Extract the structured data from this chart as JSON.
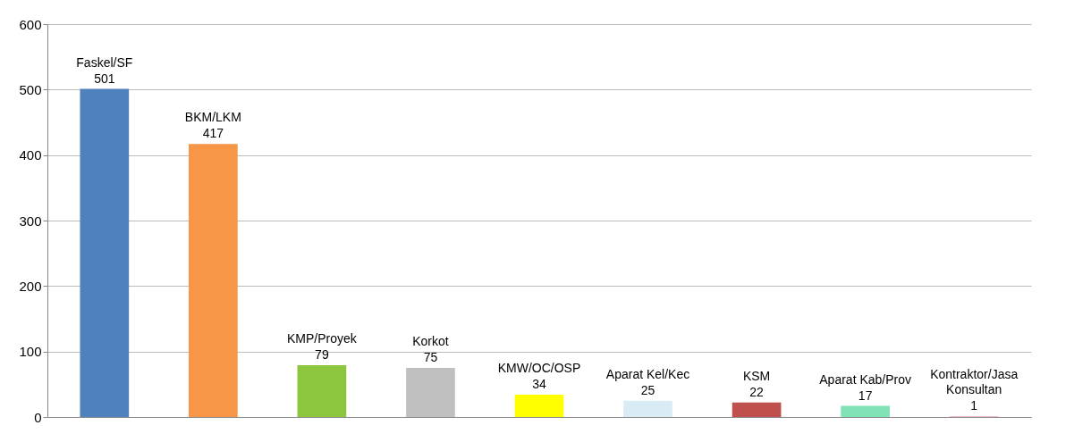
{
  "chart_data": {
    "type": "bar",
    "categories": [
      "Faskel/SF",
      "BKM/LKM",
      "KMP/Proyek",
      "Korkot",
      "KMW/OC/OSP",
      "Aparat Kel/Kec",
      "KSM",
      "Aparat Kab/Prov",
      "Kontraktor/Jasa Konsultan"
    ],
    "values": [
      501,
      417,
      79,
      75,
      34,
      25,
      22,
      17,
      1
    ],
    "colors": [
      "#4f81bd",
      "#f79646",
      "#8cc63f",
      "#c0c0c0",
      "#ffff00",
      "#d9ecf5",
      "#c0504d",
      "#7fe3b5",
      "#f2a7b0"
    ],
    "data_labels": true,
    "ylim": [
      0,
      600
    ],
    "yticks": [
      0,
      100,
      200,
      300,
      400,
      500,
      600
    ],
    "grid": "y",
    "tick_labels": "y"
  }
}
